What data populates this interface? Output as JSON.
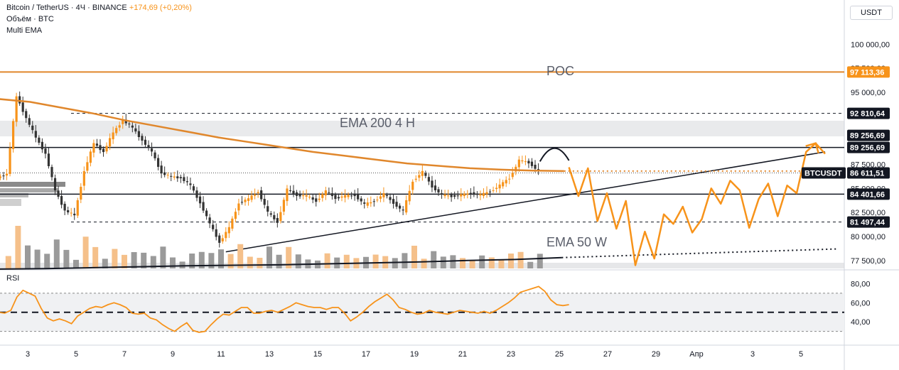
{
  "header": {
    "symbol_line": "Bitcoin / TetherUS · 4Ч · BINANCE",
    "change": "+174,69 (+0,20%)",
    "volume_line": "Объём · BTC",
    "indicator_line": "Multi EMA"
  },
  "axis_unit": "USDT",
  "rsi_label": "RSI",
  "colors": {
    "accent": "#f7931a",
    "ema200": "#e0872c",
    "up_candle": "#f7931a",
    "down_candle": "#333333",
    "volume_up": "#f5c08a",
    "volume_down": "#9a9a9a",
    "black_label": "#131722"
  },
  "chart_data": [
    {
      "type": "candlestick",
      "title": "Bitcoin / TetherUS · 4Ч · BINANCE",
      "x_tick_labels": [
        "3",
        "5",
        "7",
        "9",
        "11",
        "13",
        "15",
        "17",
        "19",
        "21",
        "23",
        "25",
        "27",
        "29",
        "Апр",
        "3",
        "5"
      ],
      "price_axis_labels": [
        "100 000,00",
        "97 500,00",
        "95 000,00",
        "87 500,00",
        "85 000,00",
        "82 500,00",
        "80 000,00",
        "77 500,00"
      ],
      "ylim": [
        76300,
        101500
      ],
      "close_path": [
        86100,
        86500,
        94600,
        92300,
        90300,
        88600,
        84800,
        82700,
        82200,
        86800,
        89700,
        88800,
        90800,
        92100,
        91300,
        90000,
        88800,
        86600,
        86200,
        86100,
        85300,
        83500,
        81300,
        79400,
        80900,
        83500,
        83900,
        84700,
        82500,
        81500,
        84900,
        84300,
        84200,
        83700,
        84700,
        84000,
        84200,
        84300,
        83300,
        83700,
        84400,
        83500,
        82600,
        85800,
        86700,
        85200,
        84300,
        84200,
        84300,
        84500,
        84300,
        84700,
        85300,
        86100,
        87900,
        87700,
        86800
      ],
      "close_step_days": 0.4,
      "series": [
        {
          "name": "EMA 200 4 H",
          "values": [
            94300,
            94000,
            93400,
            92800,
            92100,
            91500,
            90900,
            90300,
            89800,
            89300,
            88800,
            88400,
            88000,
            87600,
            87350,
            87100,
            86950,
            86850,
            86800
          ]
        },
        {
          "name": "EMA 50 W",
          "values": [
            76600,
            76650,
            76750,
            76850,
            76950,
            77000,
            77050,
            77150,
            77250,
            77350,
            77500,
            77600,
            77800
          ]
        }
      ],
      "levels": [
        {
          "label": "97 113,36",
          "value": 97113.36,
          "style": "solid-orange"
        },
        {
          "label": "92 810,64",
          "value": 92810.64,
          "style": "dashed"
        },
        {
          "label": "89 256,69",
          "value": 89256.69,
          "style": "solid"
        },
        {
          "label": "86 611,51",
          "value": 86611.51,
          "style": "symbol",
          "tag": "BTCUSDT"
        },
        {
          "label": "84 401,66",
          "value": 84401.66,
          "style": "solid"
        },
        {
          "label": "81 497,44",
          "value": 81497.44,
          "style": "dashed"
        }
      ],
      "annotations": [
        "POC",
        "EMA 200 4 H",
        "EMA 50 W"
      ],
      "projection": [
        87200,
        84200,
        87100,
        81600,
        84500,
        80800,
        83700,
        77000,
        80500,
        77700,
        82300,
        81300,
        83100,
        80400,
        81800,
        85000,
        83400,
        85800,
        84800,
        80900,
        83900,
        85500,
        82100,
        85300,
        84500,
        88800,
        89700,
        88600
      ]
    },
    {
      "type": "line",
      "title": "RSI",
      "rsi_axis_labels": [
        "80,00",
        "60,00",
        "40,00"
      ],
      "ylim": [
        20,
        87
      ],
      "bands": [
        30,
        70
      ],
      "midline": 50,
      "values": [
        50,
        49,
        52,
        66,
        73,
        70,
        67,
        54,
        44,
        41,
        43,
        41,
        38,
        46,
        50,
        54,
        56,
        55,
        58,
        60,
        58,
        55,
        49,
        48,
        49,
        44,
        42,
        37,
        33,
        30,
        35,
        39,
        31,
        29,
        30,
        37,
        43,
        48,
        47,
        51,
        55,
        55,
        49,
        49,
        51,
        52,
        50,
        53,
        56,
        60,
        58,
        56,
        55,
        55,
        53,
        55,
        55,
        49,
        41,
        45,
        50,
        56,
        61,
        65,
        69,
        63,
        55,
        53,
        50,
        48,
        49,
        52,
        50,
        49,
        48,
        50,
        52,
        51,
        50,
        49,
        51,
        49,
        52,
        56,
        60,
        65,
        71,
        73,
        75,
        77,
        72,
        63,
        58,
        57,
        58
      ]
    }
  ]
}
